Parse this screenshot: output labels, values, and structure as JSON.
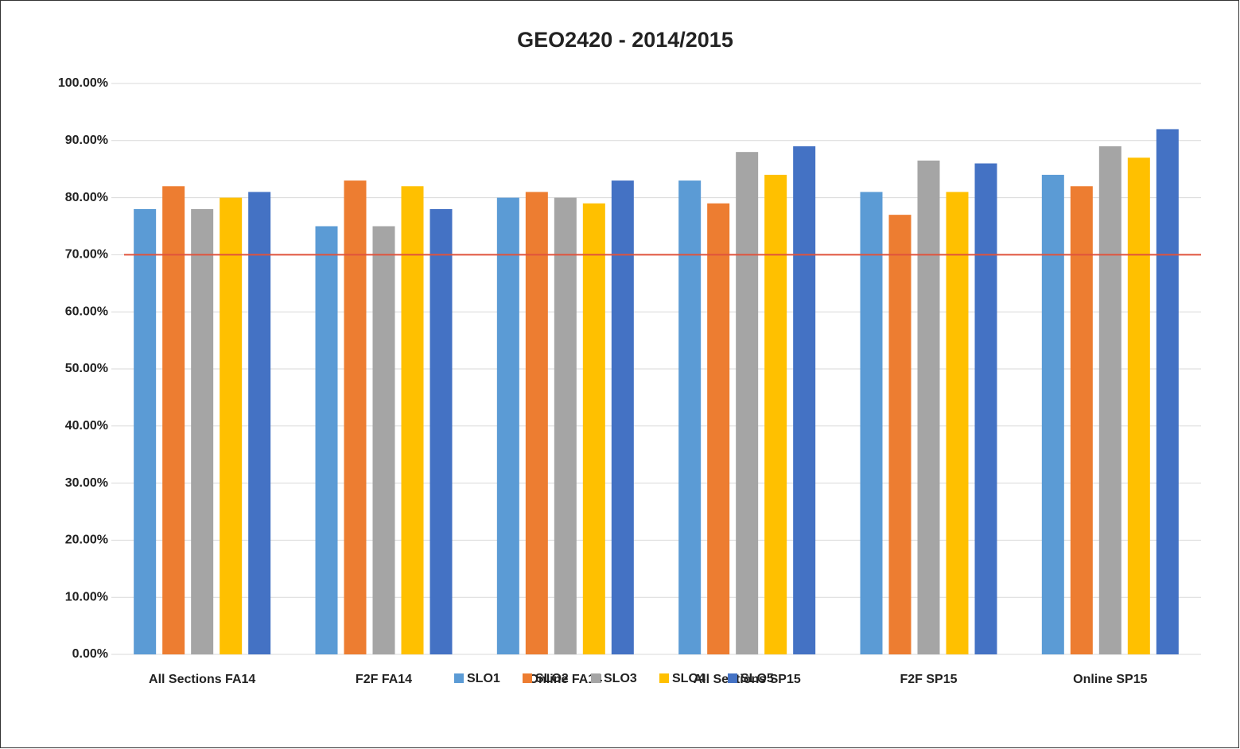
{
  "chart_data": {
    "type": "bar",
    "title": "GEO2420 - 2014/2015",
    "categories": [
      "All Sections FA14",
      "F2F FA14",
      "Online FA14",
      "All Sections SP15",
      "F2F SP15",
      "Online SP15"
    ],
    "series": [
      {
        "name": "SLO1",
        "color": "#5b9bd5",
        "values": [
          78,
          75,
          80,
          83,
          81,
          84
        ]
      },
      {
        "name": "SLO2",
        "color": "#ed7d31",
        "values": [
          82,
          83,
          81,
          79,
          77,
          82
        ]
      },
      {
        "name": "SLO3",
        "color": "#a5a5a5",
        "values": [
          78,
          75,
          80,
          88,
          86.5,
          89
        ]
      },
      {
        "name": "SLO4",
        "color": "#ffc000",
        "values": [
          80,
          82,
          79,
          84,
          81,
          87
        ]
      },
      {
        "name": "SLO5",
        "color": "#4472c4",
        "values": [
          81,
          78,
          83,
          89,
          86,
          92
        ]
      }
    ],
    "ylim": [
      0,
      100
    ],
    "yticks": [
      {
        "value": 0,
        "label": "0.00%"
      },
      {
        "value": 10,
        "label": "10.00%"
      },
      {
        "value": 20,
        "label": "20.00%"
      },
      {
        "value": 30,
        "label": "30.00%"
      },
      {
        "value": 40,
        "label": "40.00%"
      },
      {
        "value": 50,
        "label": "50.00%"
      },
      {
        "value": 60,
        "label": "60.00%"
      },
      {
        "value": 70,
        "label": "70.00%"
      },
      {
        "value": 80,
        "label": "80.00%"
      },
      {
        "value": 90,
        "label": "90.00%"
      },
      {
        "value": 100,
        "label": "100.00%"
      }
    ],
    "grid": true,
    "target_line": {
      "value": 70,
      "color": "#e0533c"
    },
    "legend": "bottom"
  }
}
